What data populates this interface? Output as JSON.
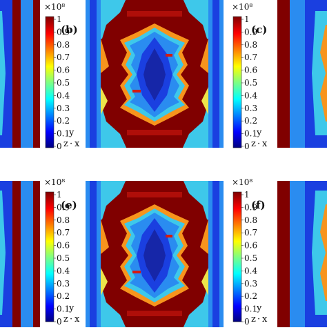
{
  "figure": {
    "panel_labels": [
      "(b)",
      "(c)",
      "(e)",
      "(f)"
    ],
    "colorbar": {
      "exponent_label": "×10⁸",
      "ticks": [
        "1",
        "0.9",
        "0.8",
        "0.7",
        "0.6",
        "0.5",
        "0.4",
        "0.3",
        "0.2",
        "0.1",
        "0"
      ],
      "range": [
        0,
        1
      ],
      "colormap": [
        "#00007f",
        "#0000ff",
        "#0080ff",
        "#00ffff",
        "#80ff80",
        "#ffff00",
        "#ff8000",
        "#ff0000",
        "#7f0000"
      ]
    },
    "axis_triad": {
      "y": "y",
      "z": "z",
      "x": "x",
      "sep": "·"
    },
    "colors": {
      "dark_red": "#800000",
      "red": "#d61a10",
      "orange": "#f7941d",
      "yellow": "#ede34a",
      "cyan": "#3ec8ea",
      "light_blue": "#2a8cf0",
      "blue": "#1a3fe0",
      "deep_blue": "#1626a8"
    }
  }
}
